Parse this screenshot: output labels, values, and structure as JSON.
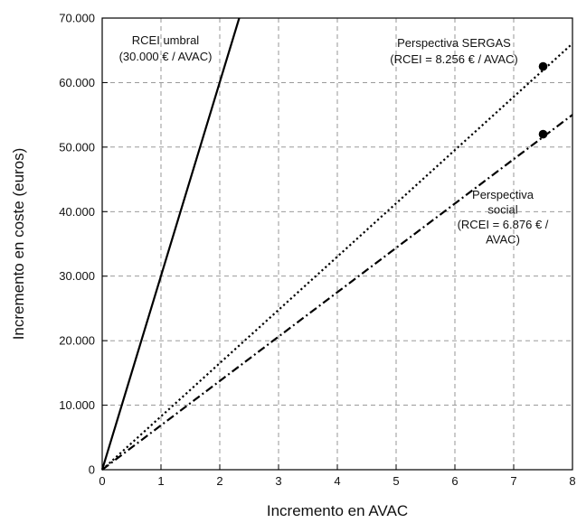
{
  "chart_data": {
    "type": "line",
    "xlabel": "Incremento en AVAC",
    "ylabel": "Incremento en coste (euros)",
    "xlim": [
      0,
      8
    ],
    "ylim": [
      0,
      70000
    ],
    "xticks": [
      "0",
      "1",
      "2",
      "3",
      "4",
      "5",
      "6",
      "7",
      "8"
    ],
    "yticks": [
      "0",
      "10.000",
      "20.000",
      "30.000",
      "40.000",
      "50.000",
      "60.000",
      "70.000"
    ],
    "grid": true,
    "series": [
      {
        "name": "RCEI umbral",
        "style": "solid",
        "color": "#000000",
        "x": [
          0,
          2.33
        ],
        "y": [
          0,
          70000
        ]
      },
      {
        "name": "Perspectiva SERGAS",
        "style": "dotted",
        "color": "#000000",
        "x": [
          0,
          8
        ],
        "y": [
          0,
          66048
        ]
      },
      {
        "name": "Perspectiva social",
        "style": "dashdot",
        "color": "#000000",
        "x": [
          0,
          8
        ],
        "y": [
          0,
          55008
        ]
      }
    ],
    "points": [
      {
        "series": "Perspectiva SERGAS",
        "x": 7.5,
        "y": 62500
      },
      {
        "series": "Perspectiva social",
        "x": 7.5,
        "y": 52000
      }
    ],
    "annotations": [
      {
        "id": "umbral",
        "lines": [
          "RCEI umbral",
          "(30.000 € / AVAC)"
        ]
      },
      {
        "id": "sergas",
        "lines": [
          "Perspectiva SERGAS",
          "(RCEI = 8.256 € / AVAC)"
        ]
      },
      {
        "id": "social",
        "lines": [
          "Perspectiva",
          "social",
          "(RCEI = 6.876 € /",
          "AVAC)"
        ]
      }
    ]
  }
}
